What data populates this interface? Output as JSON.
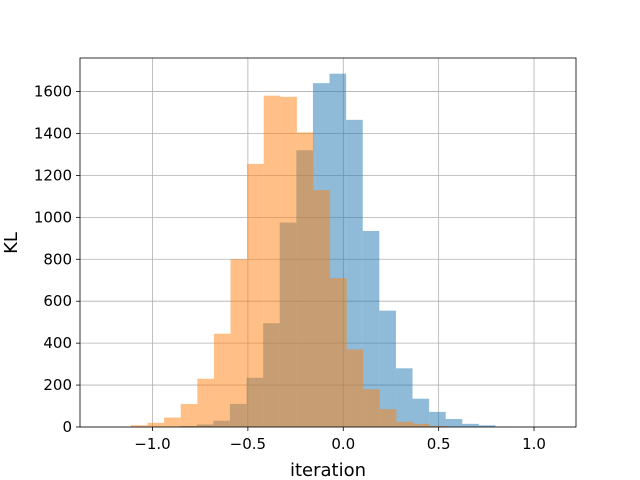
{
  "chart_data": {
    "type": "bar",
    "xlabel": "iteration",
    "ylabel": "KL",
    "xlim": [
      -1.38,
      1.22
    ],
    "ylim": [
      0,
      1760
    ],
    "xticks": [
      -1.0,
      -0.5,
      0.0,
      0.5,
      1.0
    ],
    "xtick_labels": [
      "−1.0",
      "−0.5",
      "0.0",
      "0.5",
      "1.0"
    ],
    "yticks": [
      0,
      200,
      400,
      600,
      800,
      1000,
      1200,
      1400,
      1600
    ],
    "ytick_labels": [
      "0",
      "200",
      "400",
      "600",
      "800",
      "1000",
      "1200",
      "1400",
      "1600"
    ],
    "grid": true,
    "series": [
      {
        "color": "#1f77b4",
        "opacity": 0.5,
        "bins": [
          [
            -0.855,
            -0.768,
            5
          ],
          [
            -0.768,
            -0.681,
            12
          ],
          [
            -0.681,
            -0.594,
            30
          ],
          [
            -0.594,
            -0.507,
            110
          ],
          [
            -0.507,
            -0.42,
            235
          ],
          [
            -0.42,
            -0.333,
            495
          ],
          [
            -0.333,
            -0.246,
            975
          ],
          [
            -0.246,
            -0.159,
            1320
          ],
          [
            -0.159,
            -0.072,
            1640
          ],
          [
            -0.072,
            0.015,
            1685
          ],
          [
            0.015,
            0.102,
            1465
          ],
          [
            0.102,
            0.189,
            935
          ],
          [
            0.189,
            0.276,
            555
          ],
          [
            0.276,
            0.363,
            280
          ],
          [
            0.363,
            0.45,
            135
          ],
          [
            0.45,
            0.537,
            72
          ],
          [
            0.537,
            0.624,
            38
          ],
          [
            0.624,
            0.711,
            15
          ],
          [
            0.711,
            0.798,
            8
          ],
          [
            0.798,
            0.885,
            2
          ]
        ]
      },
      {
        "color": "#ff7f0e",
        "opacity": 0.5,
        "bins": [
          [
            -1.2,
            -1.113,
            2
          ],
          [
            -1.113,
            -1.026,
            8
          ],
          [
            -1.026,
            -0.939,
            20
          ],
          [
            -0.939,
            -0.852,
            45
          ],
          [
            -0.852,
            -0.765,
            110
          ],
          [
            -0.765,
            -0.678,
            230
          ],
          [
            -0.678,
            -0.591,
            445
          ],
          [
            -0.591,
            -0.504,
            800
          ],
          [
            -0.504,
            -0.417,
            1255
          ],
          [
            -0.417,
            -0.33,
            1580
          ],
          [
            -0.33,
            -0.243,
            1575
          ],
          [
            -0.243,
            -0.156,
            1405
          ],
          [
            -0.156,
            -0.069,
            1130
          ],
          [
            -0.069,
            0.018,
            710
          ],
          [
            0.018,
            0.105,
            370
          ],
          [
            0.105,
            0.192,
            180
          ],
          [
            0.192,
            0.279,
            85
          ],
          [
            0.279,
            0.366,
            25
          ],
          [
            0.366,
            0.453,
            15
          ],
          [
            0.453,
            0.54,
            5
          ]
        ]
      }
    ]
  }
}
